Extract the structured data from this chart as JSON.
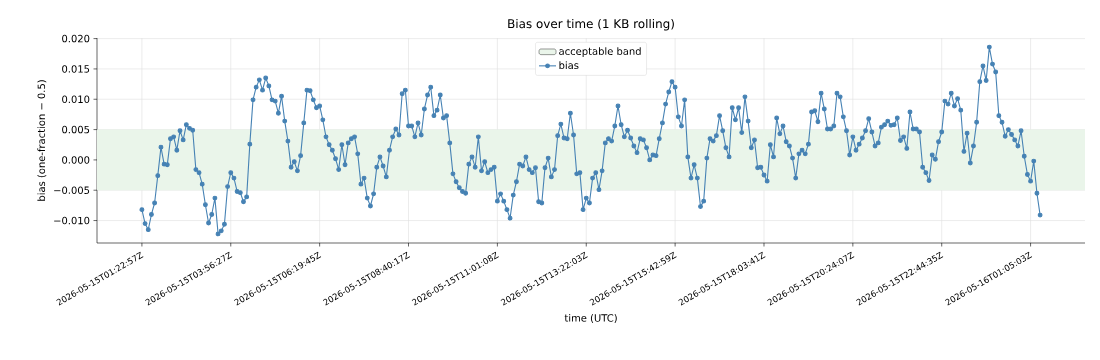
{
  "chart_data": {
    "type": "line",
    "title": "Bias over time (1 KB rolling)",
    "xlabel": "time (UTC)",
    "ylabel": "bias (one-fraction − 0.5)",
    "categories": [
      "2026-05-15T01:22:57Z",
      null,
      null,
      null,
      null,
      null,
      null,
      null,
      null,
      null,
      null,
      null,
      null,
      null,
      null,
      null,
      null,
      null,
      null,
      null,
      null,
      null,
      null,
      null,
      null,
      null,
      null,
      null,
      "2026-05-15T03:56:27Z",
      null,
      null,
      null,
      null,
      null,
      null,
      null,
      null,
      null,
      null,
      null,
      null,
      null,
      null,
      null,
      null,
      null,
      null,
      null,
      null,
      null,
      null,
      null,
      null,
      null,
      null,
      null,
      "2026-05-15T06:19:45Z",
      null,
      null,
      null,
      null,
      null,
      null,
      null,
      null,
      null,
      null,
      null,
      null,
      null,
      null,
      null,
      null,
      null,
      null,
      null,
      null,
      null,
      null,
      null,
      null,
      null,
      null,
      null,
      "2026-05-15T08:40:17Z",
      null,
      null,
      null,
      null,
      null,
      null,
      null,
      null,
      null,
      null,
      null,
      null,
      null,
      null,
      null,
      null,
      null,
      null,
      null,
      null,
      null,
      null,
      null,
      null,
      null,
      null,
      null,
      "2026-05-15T11:01:08Z",
      null,
      null,
      null,
      null,
      null,
      null,
      null,
      null,
      null,
      null,
      null,
      null,
      null,
      null,
      null,
      null,
      null,
      null,
      null,
      null,
      null,
      null,
      null,
      null,
      null,
      null,
      null,
      "2026-05-15T13:22:03Z",
      null,
      null,
      null,
      null,
      null,
      null,
      null,
      null,
      null,
      null,
      null,
      null,
      null,
      null,
      null,
      null,
      null,
      null,
      null,
      null,
      null,
      null,
      null,
      null,
      null,
      null,
      null,
      "2026-05-15T15:42:59Z",
      null,
      null,
      null,
      null,
      null,
      null,
      null,
      null,
      null,
      null,
      null,
      null,
      null,
      null,
      null,
      null,
      null,
      null,
      null,
      null,
      null,
      null,
      null,
      null,
      null,
      null,
      null,
      "2026-05-15T18:03:41Z",
      null,
      null,
      null,
      null,
      null,
      null,
      null,
      null,
      null,
      null,
      null,
      null,
      null,
      null,
      null,
      null,
      null,
      null,
      null,
      null,
      null,
      null,
      null,
      null,
      null,
      null,
      null,
      "2026-05-15T20:24:07Z",
      null,
      null,
      null,
      null,
      null,
      null,
      null,
      null,
      null,
      null,
      null,
      null,
      null,
      null,
      null,
      null,
      null,
      null,
      null,
      null,
      null,
      null,
      null,
      null,
      null,
      null,
      null,
      "2026-05-15T22:44:35Z",
      null,
      null,
      null,
      null,
      null,
      null,
      null,
      null,
      null,
      null,
      null,
      null,
      null,
      null,
      null,
      null,
      null,
      null,
      null,
      null,
      null,
      null,
      null,
      null,
      null,
      null,
      null,
      "2026-05-16T01:05:03Z",
      null,
      null,
      null
    ],
    "series": [
      {
        "name": "bias",
        "color": "#4682b4",
        "values": [
          -0.0082,
          -0.0105,
          -0.0115,
          -0.009,
          -0.0071,
          -0.0026,
          0.0021,
          -0.0007,
          -0.0008,
          0.0035,
          0.0038,
          0.0016,
          0.0048,
          0.0033,
          0.0058,
          0.0052,
          0.0049,
          -0.0016,
          -0.0021,
          -0.004,
          -0.0074,
          -0.0104,
          -0.009,
          -0.0063,
          -0.0122,
          -0.0117,
          -0.0106,
          -0.0044,
          -0.0021,
          -0.003,
          -0.0052,
          -0.0054,
          -0.0069,
          -0.0061,
          0.0026,
          0.0099,
          0.012,
          0.0132,
          0.0115,
          0.0135,
          0.0122,
          0.0099,
          0.0097,
          0.0077,
          0.0105,
          0.0064,
          0.0031,
          -0.0012,
          -0.0003,
          -0.0018,
          0.0007,
          0.0061,
          0.0115,
          0.0114,
          0.0099,
          0.0086,
          0.0089,
          0.0066,
          0.0038,
          0.0025,
          0.0016,
          0.0002,
          -0.0016,
          0.0025,
          -0.0008,
          0.0028,
          0.0035,
          0.0038,
          0.001,
          -0.004,
          -0.003,
          -0.0063,
          -0.0076,
          -0.0056,
          -0.0012,
          0.0005,
          -0.001,
          -0.0028,
          0.0016,
          0.0038,
          0.0051,
          0.0041,
          0.0109,
          0.0115,
          0.0056,
          0.0056,
          0.0038,
          0.0061,
          0.0041,
          0.0084,
          0.0107,
          0.012,
          0.0073,
          0.0082,
          0.0107,
          0.0069,
          0.0073,
          0.0028,
          -0.0023,
          -0.0036,
          -0.0046,
          -0.0052,
          -0.0055,
          -0.0007,
          0.0005,
          -0.0012,
          0.0038,
          -0.0018,
          -0.0003,
          -0.0021,
          -0.0016,
          -0.0012,
          -0.0068,
          -0.0056,
          -0.0068,
          -0.0082,
          -0.0096,
          -0.0058,
          -0.0036,
          -0.0007,
          -0.001,
          0.0005,
          -0.0016,
          -0.0021,
          -0.0013,
          -0.0069,
          -0.0071,
          -0.0013,
          0.0003,
          -0.0028,
          -0.0016,
          0.004,
          0.0059,
          0.0036,
          0.0035,
          0.0077,
          0.0041,
          -0.0023,
          -0.0021,
          -0.0082,
          -0.0063,
          -0.0071,
          -0.003,
          -0.0021,
          -0.0049,
          -0.0018,
          0.0028,
          0.0035,
          0.0031,
          0.0056,
          0.0089,
          0.0058,
          0.0038,
          0.0049,
          0.0036,
          0.0023,
          0.0012,
          0.0035,
          0.0033,
          0.002,
          0.0,
          0.0008,
          0.0007,
          0.0035,
          0.0061,
          0.0092,
          0.0112,
          0.0129,
          0.012,
          0.0071,
          0.0056,
          0.0099,
          0.0005,
          -0.003,
          -0.0008,
          -0.003,
          -0.0077,
          -0.0068,
          0.0003,
          0.0035,
          0.0031,
          0.004,
          0.0073,
          0.0048,
          0.002,
          0.0005,
          0.0086,
          0.0066,
          0.0086,
          0.0045,
          0.0104,
          0.0064,
          0.002,
          0.0033,
          -0.0013,
          -0.0012,
          -0.0025,
          -0.0035,
          0.0025,
          0.0005,
          0.0069,
          0.0043,
          0.0056,
          0.003,
          0.0023,
          0.0003,
          -0.003,
          0.001,
          0.0016,
          0.001,
          0.0026,
          0.0079,
          0.0081,
          0.0063,
          0.011,
          0.0084,
          0.0051,
          0.0051,
          0.0056,
          0.011,
          0.0104,
          0.0071,
          0.0048,
          0.0008,
          0.0038,
          0.0016,
          0.0026,
          0.0036,
          0.0048,
          0.0068,
          0.0046,
          0.0023,
          0.0028,
          0.0054,
          0.0058,
          0.0064,
          0.0057,
          0.0058,
          0.0069,
          0.0032,
          0.0038,
          0.0019,
          0.0079,
          0.0051,
          0.0051,
          0.0046,
          -0.0012,
          -0.0021,
          -0.0034,
          0.0008,
          0.0001,
          0.003,
          0.0046,
          0.0097,
          0.0092,
          0.011,
          0.0089,
          0.0101,
          0.0082,
          0.0014,
          0.0044,
          -0.0005,
          0.0023,
          0.0062,
          0.0129,
          0.0155,
          0.0131,
          0.0186,
          0.0158,
          0.0145,
          0.0073,
          0.0062,
          0.0039,
          0.005,
          0.0042,
          0.0033,
          0.0023,
          0.0048,
          0.0006,
          -0.0024,
          -0.0035,
          -0.0002,
          -0.0055,
          -0.0091
        ]
      }
    ],
    "ylim": [
      -0.0137,
      0.0201
    ],
    "yticks": [
      {
        "value": -0.01,
        "label": "−0.010"
      },
      {
        "value": -0.005,
        "label": "−0.005"
      },
      {
        "value": 0,
        "label": "0.000"
      },
      {
        "value": 0.005,
        "label": "0.005"
      },
      {
        "value": 0.01,
        "label": "0.010"
      },
      {
        "value": 0.015,
        "label": "0.015"
      },
      {
        "value": 0.02,
        "label": "0.020"
      }
    ],
    "bands": [
      {
        "axis": "y",
        "from": -0.005,
        "to": 0.005,
        "label": "acceptable band",
        "color": "#eaf5ea"
      }
    ],
    "grid": true,
    "legend": "top",
    "marker": "circle",
    "line_style": "solid"
  }
}
